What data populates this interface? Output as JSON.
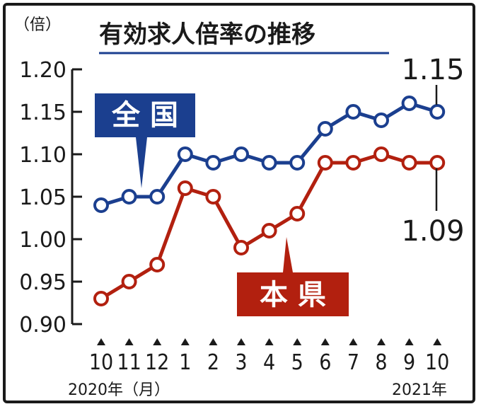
{
  "chart_data": {
    "type": "line",
    "title": "有効求人倍率の推移",
    "ylabel": "（倍）",
    "ylim": [
      0.9,
      1.2
    ],
    "yticks": [
      "1.20",
      "1.15",
      "1.10",
      "1.05",
      "1.00",
      "0.95",
      "0.90"
    ],
    "categories": [
      "10",
      "11",
      "12",
      "1",
      "2",
      "3",
      "4",
      "5",
      "6",
      "7",
      "8",
      "9",
      "10"
    ],
    "year_start_label": "2020年（月）",
    "year_end_label": "2021年",
    "series": [
      {
        "name": "全 国",
        "color": "#1b3f8f",
        "values": [
          1.04,
          1.05,
          1.05,
          1.1,
          1.09,
          1.1,
          1.09,
          1.09,
          1.13,
          1.15,
          1.14,
          1.16,
          1.15
        ],
        "end_label": "1.15"
      },
      {
        "name": "本 県",
        "color": "#b2200f",
        "values": [
          0.93,
          0.95,
          0.97,
          1.06,
          1.05,
          0.99,
          1.01,
          1.03,
          1.09,
          1.09,
          1.1,
          1.09,
          1.09
        ],
        "end_label": "1.09"
      }
    ]
  }
}
